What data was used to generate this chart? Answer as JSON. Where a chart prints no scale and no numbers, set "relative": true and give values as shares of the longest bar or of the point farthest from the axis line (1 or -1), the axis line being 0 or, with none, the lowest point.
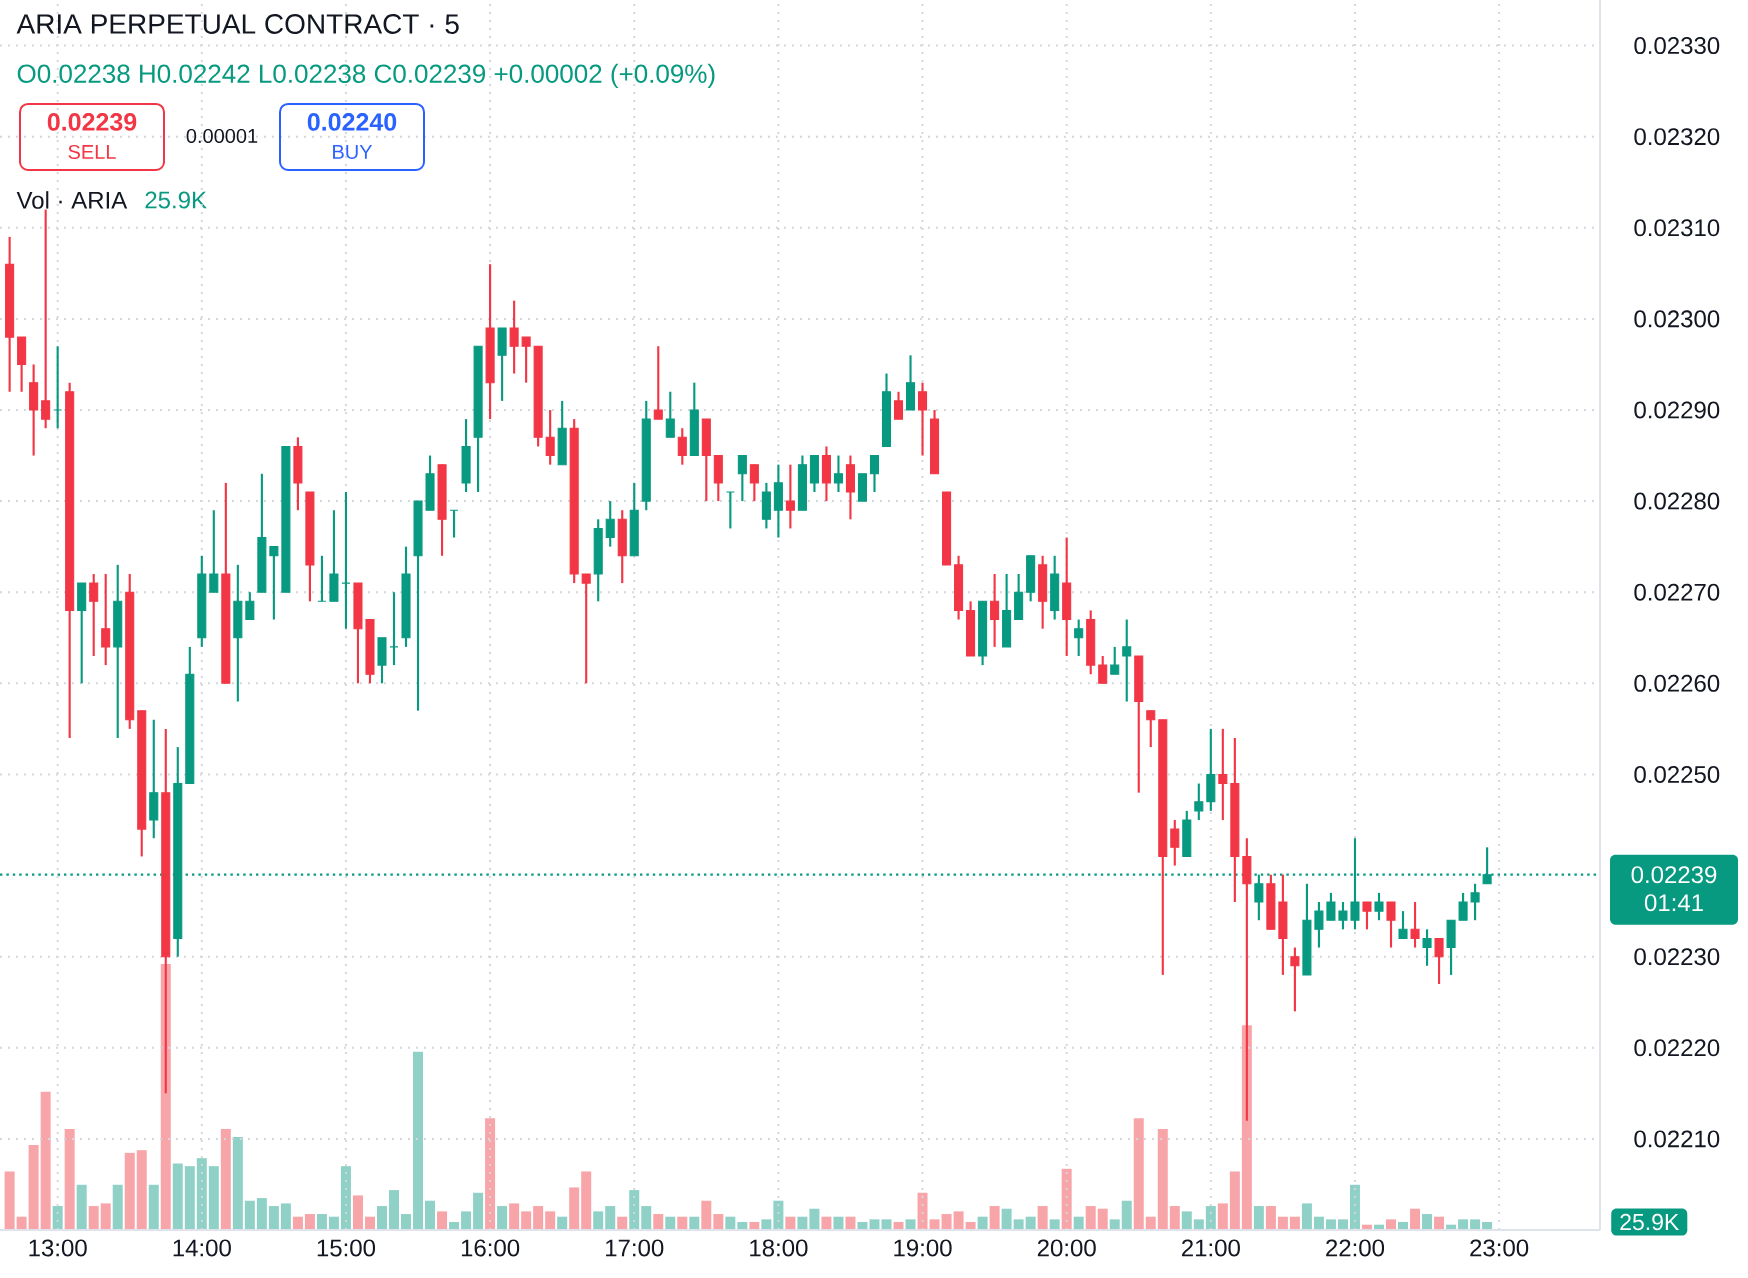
{
  "chart_data": [
    {
      "type": "candlestick",
      "title": "ARIA PERPETUAL CONTRACT · 5",
      "subtitle": "O0.02238 H0.02242 L0.02238 C0.02239 +0.00002 (+0.09%)",
      "annotations": [
        "0.02239",
        "SELL",
        "0.00001",
        "0.02240",
        "BUY",
        "01:41"
      ],
      "x": [
        12.6667,
        12.75,
        12.8333,
        12.9167,
        13,
        13.0833,
        13.1667,
        13.25,
        13.3333,
        13.4167,
        13.5,
        13.5833,
        13.6667,
        13.75,
        13.8333,
        13.9167,
        14,
        14.0833,
        14.1667,
        14.25,
        14.3333,
        14.4167,
        14.5,
        14.5833,
        14.6667,
        14.75,
        14.8333,
        14.9167,
        15,
        15.0833,
        15.1667,
        15.25,
        15.3333,
        15.4167,
        15.5,
        15.5833,
        15.6667,
        15.75,
        15.8333,
        15.9167,
        16,
        16.0833,
        16.1667,
        16.25,
        16.3333,
        16.4167,
        16.5,
        16.5833,
        16.6667,
        16.75,
        16.8333,
        16.9167,
        17,
        17.0833,
        17.1667,
        17.25,
        17.3333,
        17.4167,
        17.5,
        17.5833,
        17.6667,
        17.75,
        17.8333,
        17.9167,
        18,
        18.0833,
        18.1667,
        18.25,
        18.3333,
        18.4167,
        18.5,
        18.5833,
        18.6667,
        18.75,
        18.8333,
        18.9167,
        19,
        19.0833,
        19.1667,
        19.25,
        19.3333,
        19.4167,
        19.5,
        19.5833,
        19.6667,
        19.75,
        19.8333,
        19.9167,
        20,
        20.0833,
        20.1667,
        20.25,
        20.3333,
        20.4167,
        20.5,
        20.5833,
        20.6667,
        20.75,
        20.8333,
        20.9167,
        21,
        21.0833,
        21.1667,
        21.25,
        21.3333,
        21.4167,
        21.5,
        21.5833,
        21.6667,
        21.75,
        21.8333,
        21.9167,
        22,
        22.0833,
        22.1667,
        22.25,
        22.3333,
        22.4167,
        22.5,
        22.5833,
        22.6667,
        22.75,
        22.8333,
        22.9167
      ],
      "ohlc": [
        [
          0.02306,
          0.02309,
          0.02292,
          0.02298
        ],
        [
          0.02298,
          0.02298,
          0.02292,
          0.02295
        ],
        [
          0.02293,
          0.02295,
          0.02285,
          0.0229
        ],
        [
          0.02291,
          0.02312,
          0.02288,
          0.02289
        ],
        [
          0.0229,
          0.02297,
          0.02288,
          0.0229
        ],
        [
          0.02292,
          0.02293,
          0.02254,
          0.02268
        ],
        [
          0.02268,
          0.02271,
          0.0226,
          0.02271
        ],
        [
          0.02271,
          0.02272,
          0.02263,
          0.02269
        ],
        [
          0.02266,
          0.02272,
          0.02262,
          0.02264
        ],
        [
          0.02264,
          0.02273,
          0.02254,
          0.02269
        ],
        [
          0.0227,
          0.02272,
          0.02255,
          0.02256
        ],
        [
          0.02257,
          0.02257,
          0.02241,
          0.02244
        ],
        [
          0.02245,
          0.02256,
          0.02243,
          0.02248
        ],
        [
          0.02248,
          0.02255,
          0.02215,
          0.0223
        ],
        [
          0.02232,
          0.02253,
          0.0223,
          0.02249
        ],
        [
          0.02249,
          0.02264,
          0.02249,
          0.02261
        ],
        [
          0.02265,
          0.02274,
          0.02264,
          0.02272
        ],
        [
          0.0227,
          0.02279,
          0.0227,
          0.02272
        ],
        [
          0.02272,
          0.02282,
          0.0226,
          0.0226
        ],
        [
          0.02265,
          0.02273,
          0.02258,
          0.02269
        ],
        [
          0.02267,
          0.0227,
          0.02267,
          0.02269
        ],
        [
          0.0227,
          0.02283,
          0.0227,
          0.02276
        ],
        [
          0.02274,
          0.02275,
          0.02267,
          0.02275
        ],
        [
          0.0227,
          0.02286,
          0.0227,
          0.02286
        ],
        [
          0.02286,
          0.02287,
          0.02279,
          0.02282
        ],
        [
          0.02281,
          0.02281,
          0.02269,
          0.02273
        ],
        [
          0.02269,
          0.02274,
          0.02269,
          0.02269
        ],
        [
          0.02269,
          0.02279,
          0.02269,
          0.02272
        ],
        [
          0.02271,
          0.02281,
          0.02266,
          0.02271
        ],
        [
          0.02271,
          0.02271,
          0.0226,
          0.02266
        ],
        [
          0.02267,
          0.02267,
          0.0226,
          0.02261
        ],
        [
          0.02262,
          0.02265,
          0.0226,
          0.02265
        ],
        [
          0.02264,
          0.0227,
          0.02262,
          0.02264
        ],
        [
          0.02265,
          0.02275,
          0.02264,
          0.02272
        ],
        [
          0.02274,
          0.0228,
          0.02257,
          0.0228
        ],
        [
          0.02279,
          0.02285,
          0.02279,
          0.02283
        ],
        [
          0.02284,
          0.02284,
          0.02274,
          0.02278
        ],
        [
          0.02279,
          0.02279,
          0.02276,
          0.02279
        ],
        [
          0.02282,
          0.02289,
          0.02281,
          0.02286
        ],
        [
          0.02287,
          0.02297,
          0.02281,
          0.02297
        ],
        [
          0.02299,
          0.02306,
          0.02289,
          0.02293
        ],
        [
          0.02296,
          0.02299,
          0.02291,
          0.02299
        ],
        [
          0.02299,
          0.02302,
          0.02294,
          0.02297
        ],
        [
          0.02298,
          0.02298,
          0.02293,
          0.02297
        ],
        [
          0.02297,
          0.02297,
          0.02286,
          0.02287
        ],
        [
          0.02287,
          0.0229,
          0.02284,
          0.02285
        ],
        [
          0.02284,
          0.02291,
          0.02284,
          0.02288
        ],
        [
          0.02288,
          0.02289,
          0.02271,
          0.02272
        ],
        [
          0.02272,
          0.02272,
          0.0226,
          0.02271
        ],
        [
          0.02272,
          0.02278,
          0.02269,
          0.02277
        ],
        [
          0.02276,
          0.0228,
          0.02275,
          0.02278
        ],
        [
          0.02278,
          0.02279,
          0.02271,
          0.02274
        ],
        [
          0.02274,
          0.02282,
          0.02274,
          0.02279
        ],
        [
          0.0228,
          0.02291,
          0.02279,
          0.02289
        ],
        [
          0.0229,
          0.02297,
          0.02289,
          0.02289
        ],
        [
          0.02287,
          0.02292,
          0.02287,
          0.02289
        ],
        [
          0.02287,
          0.02288,
          0.02284,
          0.02285
        ],
        [
          0.02285,
          0.02293,
          0.02285,
          0.0229
        ],
        [
          0.02289,
          0.02289,
          0.0228,
          0.02285
        ],
        [
          0.02285,
          0.02285,
          0.0228,
          0.02282
        ],
        [
          0.02281,
          0.02281,
          0.02277,
          0.02281
        ],
        [
          0.02283,
          0.02285,
          0.0228,
          0.02285
        ],
        [
          0.02284,
          0.02284,
          0.0228,
          0.02282
        ],
        [
          0.02278,
          0.02282,
          0.02277,
          0.02281
        ],
        [
          0.02279,
          0.02284,
          0.02276,
          0.02282
        ],
        [
          0.0228,
          0.02284,
          0.02277,
          0.02279
        ],
        [
          0.02279,
          0.02285,
          0.02279,
          0.02284
        ],
        [
          0.02282,
          0.02285,
          0.02281,
          0.02285
        ],
        [
          0.02285,
          0.02286,
          0.0228,
          0.02282
        ],
        [
          0.02282,
          0.02285,
          0.02281,
          0.02283
        ],
        [
          0.02284,
          0.02285,
          0.02278,
          0.02281
        ],
        [
          0.0228,
          0.02283,
          0.0228,
          0.02283
        ],
        [
          0.02283,
          0.02285,
          0.02281,
          0.02285
        ],
        [
          0.02286,
          0.02294,
          0.02286,
          0.02292
        ],
        [
          0.02291,
          0.02292,
          0.02289,
          0.02289
        ],
        [
          0.0229,
          0.02296,
          0.0229,
          0.02293
        ],
        [
          0.02292,
          0.02293,
          0.02285,
          0.0229
        ],
        [
          0.02289,
          0.0229,
          0.02283,
          0.02283
        ],
        [
          0.02281,
          0.02281,
          0.02273,
          0.02273
        ],
        [
          0.02273,
          0.02274,
          0.02267,
          0.02268
        ],
        [
          0.02268,
          0.02269,
          0.02263,
          0.02263
        ],
        [
          0.02263,
          0.02269,
          0.02262,
          0.02269
        ],
        [
          0.02269,
          0.02272,
          0.02264,
          0.02267
        ],
        [
          0.02264,
          0.02272,
          0.02264,
          0.02268
        ],
        [
          0.02267,
          0.02272,
          0.02267,
          0.0227
        ],
        [
          0.0227,
          0.02274,
          0.02269,
          0.02274
        ],
        [
          0.02273,
          0.02274,
          0.02266,
          0.02269
        ],
        [
          0.02268,
          0.02274,
          0.02267,
          0.02272
        ],
        [
          0.02271,
          0.02276,
          0.02263,
          0.02267
        ],
        [
          0.02265,
          0.02267,
          0.02263,
          0.02266
        ],
        [
          0.02267,
          0.02268,
          0.02261,
          0.02262
        ],
        [
          0.02262,
          0.02263,
          0.0226,
          0.0226
        ],
        [
          0.02261,
          0.02264,
          0.02261,
          0.02262
        ],
        [
          0.02263,
          0.02267,
          0.02258,
          0.02264
        ],
        [
          0.02263,
          0.02263,
          0.02248,
          0.02258
        ],
        [
          0.02257,
          0.02257,
          0.02253,
          0.02256
        ],
        [
          0.02256,
          0.02256,
          0.02228,
          0.02241
        ],
        [
          0.02244,
          0.02245,
          0.0224,
          0.02242
        ],
        [
          0.02241,
          0.02246,
          0.02241,
          0.02245
        ],
        [
          0.02246,
          0.02249,
          0.02245,
          0.02247
        ],
        [
          0.02247,
          0.02255,
          0.02246,
          0.0225
        ],
        [
          0.0225,
          0.02255,
          0.02245,
          0.02249
        ],
        [
          0.02249,
          0.02254,
          0.02236,
          0.02241
        ],
        [
          0.02241,
          0.02243,
          0.02212,
          0.02238
        ],
        [
          0.02236,
          0.02239,
          0.02234,
          0.02238
        ],
        [
          0.02238,
          0.02239,
          0.02233,
          0.02233
        ],
        [
          0.02236,
          0.02239,
          0.02228,
          0.02232
        ],
        [
          0.0223,
          0.02231,
          0.02224,
          0.02229
        ],
        [
          0.02228,
          0.02238,
          0.02228,
          0.02234
        ],
        [
          0.02233,
          0.02236,
          0.02231,
          0.02235
        ],
        [
          0.02234,
          0.02237,
          0.02234,
          0.02236
        ],
        [
          0.02234,
          0.02236,
          0.02233,
          0.02235
        ],
        [
          0.02234,
          0.02243,
          0.02233,
          0.02236
        ],
        [
          0.02236,
          0.02236,
          0.02233,
          0.02235
        ],
        [
          0.02235,
          0.02237,
          0.02234,
          0.02236
        ],
        [
          0.02236,
          0.02236,
          0.02231,
          0.02234
        ],
        [
          0.02232,
          0.02235,
          0.02232,
          0.02233
        ],
        [
          0.02233,
          0.02236,
          0.02231,
          0.02232
        ],
        [
          0.02231,
          0.02233,
          0.02229,
          0.02232
        ],
        [
          0.02232,
          0.02232,
          0.02227,
          0.0223
        ],
        [
          0.02231,
          0.02234,
          0.02228,
          0.02234
        ],
        [
          0.02234,
          0.02237,
          0.02234,
          0.02236
        ],
        [
          0.02236,
          0.02238,
          0.02234,
          0.02237
        ],
        [
          0.02238,
          0.02242,
          0.02238,
          0.02239
        ]
      ],
      "colors": [
        "#f23645",
        "#f23645",
        "#f23645",
        "#f23645",
        "#089981",
        "#f23645",
        "#089981",
        "#f23645",
        "#f23645",
        "#089981",
        "#f23645",
        "#f23645",
        "#089981",
        "#f23645",
        "#089981",
        "#089981",
        "#089981",
        "#089981",
        "#f23645",
        "#089981",
        "#089981",
        "#089981",
        "#089981",
        "#089981",
        "#f23645",
        "#f23645",
        "#089981",
        "#089981",
        "#089981",
        "#f23645",
        "#f23645",
        "#089981",
        "#089981",
        "#089981",
        "#089981",
        "#089981",
        "#f23645",
        "#089981",
        "#089981",
        "#089981",
        "#f23645",
        "#089981",
        "#f23645",
        "#f23645",
        "#f23645",
        "#f23645",
        "#089981",
        "#f23645",
        "#f23645",
        "#089981",
        "#089981",
        "#f23645",
        "#089981",
        "#089981",
        "#f23645",
        "#089981",
        "#f23645",
        "#089981",
        "#f23645",
        "#f23645",
        "#089981",
        "#089981",
        "#f23645",
        "#089981",
        "#089981",
        "#f23645",
        "#089981",
        "#089981",
        "#f23645",
        "#089981",
        "#f23645",
        "#089981",
        "#089981",
        "#089981",
        "#f23645",
        "#089981",
        "#f23645",
        "#f23645",
        "#f23645",
        "#f23645",
        "#f23645",
        "#089981",
        "#f23645",
        "#089981",
        "#089981",
        "#089981",
        "#f23645",
        "#089981",
        "#f23645",
        "#089981",
        "#f23645",
        "#f23645",
        "#089981",
        "#089981",
        "#f23645",
        "#f23645",
        "#f23645",
        "#f23645",
        "#089981",
        "#089981",
        "#089981",
        "#f23645",
        "#f23645",
        "#f23645",
        "#089981",
        "#f23645",
        "#f23645",
        "#f23645",
        "#089981",
        "#089981",
        "#089981",
        "#089981",
        "#089981",
        "#f23645",
        "#089981",
        "#f23645",
        "#089981",
        "#f23645",
        "#089981",
        "#f23645",
        "#089981",
        "#089981",
        "#089981",
        "#089981"
      ],
      "xlim": [
        12.6,
        23.7
      ],
      "ylim": [
        0.022,
        0.02335
      ],
      "xticks": [
        {
          "value": 13,
          "label": "13:00"
        },
        {
          "value": 14,
          "label": "14:00"
        },
        {
          "value": 15,
          "label": "15:00"
        },
        {
          "value": 16,
          "label": "16:00"
        },
        {
          "value": 17,
          "label": "17:00"
        },
        {
          "value": 18,
          "label": "18:00"
        },
        {
          "value": 19,
          "label": "19:00"
        },
        {
          "value": 20,
          "label": "20:00"
        },
        {
          "value": 21,
          "label": "21:00"
        },
        {
          "value": 22,
          "label": "22:00"
        },
        {
          "value": 23,
          "label": "23:00"
        }
      ],
      "yticks": [
        {
          "value": 0.0221,
          "label": "0.02210"
        },
        {
          "value": 0.0222,
          "label": "0.02220"
        },
        {
          "value": 0.0223,
          "label": "0.02230"
        },
        {
          "value": 0.0225,
          "label": "0.02250"
        },
        {
          "value": 0.0226,
          "label": "0.02260"
        },
        {
          "value": 0.0227,
          "label": "0.02270"
        },
        {
          "value": 0.0228,
          "label": "0.02280"
        },
        {
          "value": 0.0229,
          "label": "0.02290"
        },
        {
          "value": 0.023,
          "label": "0.02300"
        },
        {
          "value": 0.0231,
          "label": "0.02310"
        },
        {
          "value": 0.0232,
          "label": "0.02320"
        },
        {
          "value": 0.0233,
          "label": "0.02330"
        }
      ],
      "grid": true,
      "ref_lines": [
        {
          "axis": "y",
          "value": 0.02239,
          "label": "0.02239",
          "color": "#089981",
          "line_style": "dotted"
        }
      ]
    },
    {
      "type": "bar",
      "title": "Vol · ARIA",
      "annotations": [
        "25.9K",
        "25.9K"
      ],
      "relative": true,
      "x": [
        12.6667,
        12.75,
        12.8333,
        12.9167,
        13,
        13.0833,
        13.1667,
        13.25,
        13.3333,
        13.4167,
        13.5,
        13.5833,
        13.6667,
        13.75,
        13.8333,
        13.9167,
        14,
        14.0833,
        14.1667,
        14.25,
        14.3333,
        14.4167,
        14.5,
        14.5833,
        14.6667,
        14.75,
        14.8333,
        14.9167,
        15,
        15.0833,
        15.1667,
        15.25,
        15.3333,
        15.4167,
        15.5,
        15.5833,
        15.6667,
        15.75,
        15.8333,
        15.9167,
        16,
        16.0833,
        16.1667,
        16.25,
        16.3333,
        16.4167,
        16.5,
        16.5833,
        16.6667,
        16.75,
        16.8333,
        16.9167,
        17,
        17.0833,
        17.1667,
        17.25,
        17.3333,
        17.4167,
        17.5,
        17.5833,
        17.6667,
        17.75,
        17.8333,
        17.9167,
        18,
        18.0833,
        18.1667,
        18.25,
        18.3333,
        18.4167,
        18.5,
        18.5833,
        18.6667,
        18.75,
        18.8333,
        18.9167,
        19,
        19.0833,
        19.1667,
        19.25,
        19.3333,
        19.4167,
        19.5,
        19.5833,
        19.6667,
        19.75,
        19.8333,
        19.9167,
        20,
        20.0833,
        20.1667,
        20.25,
        20.3333,
        20.4167,
        20.5,
        20.5833,
        20.6667,
        20.75,
        20.8333,
        20.9167,
        21,
        21.0833,
        21.1667,
        21.25,
        21.3333,
        21.4167,
        21.5,
        21.5833,
        21.6667,
        21.75,
        21.8333,
        21.9167,
        22,
        22.0833,
        22.1667,
        22.25,
        22.3333,
        22.4167,
        22.5,
        22.5833,
        22.6667,
        22.75,
        22.8333,
        22.9167
      ],
      "values": [
        0.22,
        0.05,
        0.32,
        0.52,
        0.09,
        0.38,
        0.17,
        0.09,
        0.1,
        0.17,
        0.29,
        0.3,
        0.17,
        1,
        0.25,
        0.24,
        0.27,
        0.24,
        0.38,
        0.35,
        0.11,
        0.12,
        0.09,
        0.1,
        0.05,
        0.06,
        0.06,
        0.05,
        0.24,
        0.13,
        0.05,
        0.09,
        0.15,
        0.06,
        0.67,
        0.11,
        0.07,
        0.03,
        0.07,
        0.14,
        0.42,
        0.09,
        0.1,
        0.07,
        0.09,
        0.07,
        0.05,
        0.16,
        0.22,
        0.07,
        0.09,
        0.05,
        0.15,
        0.09,
        0.06,
        0.05,
        0.05,
        0.05,
        0.11,
        0.06,
        0.05,
        0.03,
        0.03,
        0.04,
        0.11,
        0.05,
        0.05,
        0.08,
        0.05,
        0.05,
        0.05,
        0.03,
        0.04,
        0.04,
        0.03,
        0.04,
        0.14,
        0.04,
        0.06,
        0.07,
        0.03,
        0.05,
        0.09,
        0.08,
        0.04,
        0.05,
        0.09,
        0.04,
        0.23,
        0.05,
        0.09,
        0.08,
        0.04,
        0.11,
        0.42,
        0.05,
        0.38,
        0.09,
        0.07,
        0.04,
        0.09,
        0.1,
        0.22,
        0.77,
        0.09,
        0.09,
        0.05,
        0.05,
        0.1,
        0.05,
        0.04,
        0.04,
        0.17,
        0.02,
        0.02,
        0.04,
        0.03,
        0.08,
        0.06,
        0.05,
        0.02,
        0.04,
        0.04,
        0.03
      ],
      "colors": [
        "#f7a5a8",
        "#f7a5a8",
        "#f7a5a8",
        "#f7a5a8",
        "#8fd1c6",
        "#f7a5a8",
        "#8fd1c6",
        "#f7a5a8",
        "#f7a5a8",
        "#8fd1c6",
        "#f7a5a8",
        "#f7a5a8",
        "#8fd1c6",
        "#f7a5a8",
        "#8fd1c6",
        "#8fd1c6",
        "#8fd1c6",
        "#8fd1c6",
        "#f7a5a8",
        "#8fd1c6",
        "#8fd1c6",
        "#8fd1c6",
        "#8fd1c6",
        "#8fd1c6",
        "#f7a5a8",
        "#f7a5a8",
        "#8fd1c6",
        "#8fd1c6",
        "#8fd1c6",
        "#f7a5a8",
        "#f7a5a8",
        "#8fd1c6",
        "#8fd1c6",
        "#8fd1c6",
        "#8fd1c6",
        "#8fd1c6",
        "#f7a5a8",
        "#8fd1c6",
        "#8fd1c6",
        "#8fd1c6",
        "#f7a5a8",
        "#8fd1c6",
        "#f7a5a8",
        "#f7a5a8",
        "#f7a5a8",
        "#f7a5a8",
        "#8fd1c6",
        "#f7a5a8",
        "#f7a5a8",
        "#8fd1c6",
        "#8fd1c6",
        "#f7a5a8",
        "#8fd1c6",
        "#8fd1c6",
        "#f7a5a8",
        "#8fd1c6",
        "#f7a5a8",
        "#8fd1c6",
        "#f7a5a8",
        "#f7a5a8",
        "#8fd1c6",
        "#8fd1c6",
        "#f7a5a8",
        "#8fd1c6",
        "#8fd1c6",
        "#f7a5a8",
        "#8fd1c6",
        "#8fd1c6",
        "#f7a5a8",
        "#8fd1c6",
        "#f7a5a8",
        "#8fd1c6",
        "#8fd1c6",
        "#8fd1c6",
        "#f7a5a8",
        "#8fd1c6",
        "#f7a5a8",
        "#f7a5a8",
        "#f7a5a8",
        "#f7a5a8",
        "#f7a5a8",
        "#8fd1c6",
        "#f7a5a8",
        "#8fd1c6",
        "#8fd1c6",
        "#8fd1c6",
        "#f7a5a8",
        "#8fd1c6",
        "#f7a5a8",
        "#8fd1c6",
        "#f7a5a8",
        "#f7a5a8",
        "#8fd1c6",
        "#8fd1c6",
        "#f7a5a8",
        "#f7a5a8",
        "#f7a5a8",
        "#f7a5a8",
        "#8fd1c6",
        "#8fd1c6",
        "#8fd1c6",
        "#f7a5a8",
        "#f7a5a8",
        "#f7a5a8",
        "#8fd1c6",
        "#f7a5a8",
        "#f7a5a8",
        "#f7a5a8",
        "#8fd1c6",
        "#8fd1c6",
        "#8fd1c6",
        "#8fd1c6",
        "#8fd1c6",
        "#f7a5a8",
        "#8fd1c6",
        "#f7a5a8",
        "#8fd1c6",
        "#f7a5a8",
        "#8fd1c6",
        "#f7a5a8",
        "#8fd1c6",
        "#8fd1c6",
        "#8fd1c6",
        "#8fd1c6"
      ],
      "xlim": [
        12.6,
        23.7
      ],
      "tick_labels": false
    }
  ]
}
